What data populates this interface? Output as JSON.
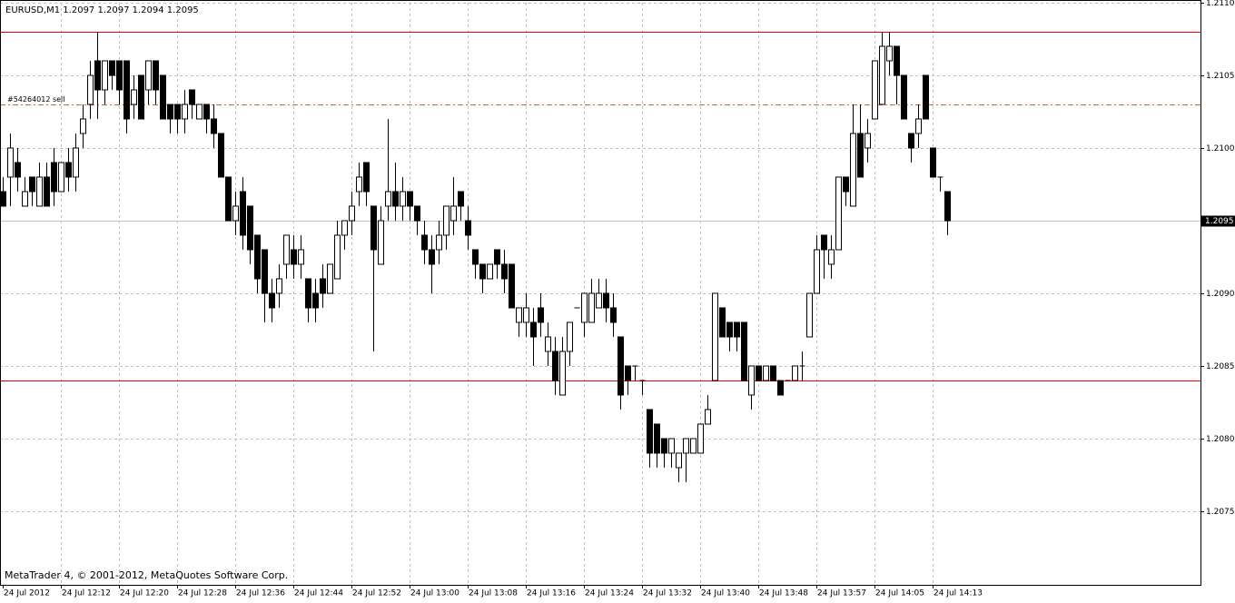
{
  "chart_data": {
    "type": "candlestick",
    "header": "EURUSD,M1  1.2097 1.2097 1.2094 1.2095",
    "footer": "MetaTrader 4, © 2001-2012, MetaQuotes Software Corp.",
    "categories": [
      "24 Jul 2012",
      null,
      null,
      null,
      null,
      null,
      null,
      null,
      "24 Jul 12:12",
      null,
      null,
      null,
      null,
      null,
      null,
      null,
      "24 Jul 12:20",
      null,
      null,
      null,
      null,
      null,
      null,
      null,
      "24 Jul 12:28",
      null,
      null,
      null,
      null,
      null,
      null,
      null,
      "24 Jul 12:36",
      null,
      null,
      null,
      null,
      null,
      null,
      null,
      "24 Jul 12:44",
      null,
      null,
      null,
      null,
      null,
      null,
      null,
      "24 Jul 12:52",
      null,
      null,
      null,
      null,
      null,
      null,
      null,
      "24 Jul 13:00",
      null,
      null,
      null,
      null,
      null,
      null,
      null,
      "24 Jul 13:08",
      null,
      null,
      null,
      null,
      null,
      null,
      null,
      "24 Jul 13:16",
      null,
      null,
      null,
      null,
      null,
      null,
      null,
      "24 Jul 13:24",
      null,
      null,
      null,
      null,
      null,
      null,
      null,
      "24 Jul 13:32",
      null,
      null,
      null,
      null,
      null,
      null,
      null,
      "24 Jul 13:40",
      null,
      null,
      null,
      null,
      null,
      null,
      null,
      "24 Jul 13:48",
      null,
      null,
      null,
      null,
      null,
      null,
      null,
      "24 Jul 13:57",
      null,
      null,
      null,
      null,
      null,
      null,
      null,
      "24 Jul 14:05",
      null,
      null,
      null,
      null,
      null,
      null,
      null,
      "24 Jul 14:13",
      null,
      null
    ],
    "open": [
      1.2097,
      1.2098,
      1.2099,
      1.2096,
      1.2098,
      1.2096,
      1.2098,
      1.2099,
      1.2097,
      1.2099,
      1.2098,
      1.2101,
      1.2103,
      1.2106,
      1.2104,
      1.2106,
      1.2106,
      1.2106,
      1.2103,
      1.2105,
      1.2104,
      1.2106,
      1.2105,
      1.2103,
      1.2103,
      1.2102,
      1.2104,
      1.2102,
      1.2103,
      1.2102,
      1.2101,
      1.2098,
      1.2095,
      1.2097,
      1.2096,
      1.2094,
      1.2093,
      1.209,
      1.209,
      1.2092,
      1.2093,
      1.2092,
      1.2091,
      1.209,
      1.2091,
      1.209,
      1.2091,
      1.2094,
      1.2095,
      1.2097,
      1.2099,
      1.2096,
      1.2092,
      1.2096,
      1.2097,
      1.2096,
      1.2097,
      1.2096,
      1.2094,
      1.2093,
      1.2093,
      1.2094,
      1.2095,
      1.2097,
      1.2095,
      1.2093,
      1.2092,
      1.2091,
      1.2093,
      1.2092,
      1.2092,
      1.2088,
      1.2088,
      1.2088,
      1.2089,
      1.2086,
      1.2086,
      1.2083,
      1.2086,
      1.2089,
      1.2088,
      1.2088,
      1.2089,
      1.209,
      1.2089,
      1.2087,
      1.2085,
      1.2085,
      1.2084,
      1.2082,
      1.2081,
      1.208,
      1.2079,
      1.2078,
      1.2079,
      1.2079,
      1.2079,
      1.2081,
      1.2084,
      1.2089,
      1.2088,
      1.2088,
      1.2088,
      1.2083,
      1.2085,
      1.2084,
      1.2085,
      1.2084,
      1.2084,
      1.2084,
      1.2085,
      1.2087,
      1.209,
      1.2094,
      1.2092,
      1.2093,
      1.2098,
      1.2096,
      1.2101,
      1.21,
      1.2102,
      1.2103,
      1.2106,
      1.2107,
      1.2105,
      1.2101,
      1.2101,
      1.2105,
      1.21,
      1.2098,
      1.2097
    ],
    "high": [
      1.2098,
      1.2101,
      1.21,
      1.2098,
      1.2098,
      1.2099,
      1.2099,
      1.21,
      1.2099,
      1.21,
      1.2101,
      1.2103,
      1.2106,
      1.2108,
      1.2106,
      1.2106,
      1.2106,
      1.2106,
      1.2105,
      1.2105,
      1.2106,
      1.2106,
      1.2105,
      1.2103,
      1.2103,
      1.2104,
      1.2104,
      1.2103,
      1.2103,
      1.2103,
      1.2101,
      1.2098,
      1.2097,
      1.2098,
      1.2096,
      1.2094,
      1.2093,
      1.2091,
      1.2092,
      1.2094,
      1.2094,
      1.2094,
      1.2091,
      1.2091,
      1.2092,
      1.2092,
      1.2095,
      1.2095,
      1.2097,
      1.2099,
      1.2099,
      1.2096,
      1.2096,
      1.2102,
      1.2099,
      1.2098,
      1.2097,
      1.2096,
      1.2095,
      1.2094,
      1.2095,
      1.2096,
      1.2098,
      1.2097,
      1.2096,
      1.2093,
      1.2092,
      1.2092,
      1.2093,
      1.2093,
      1.2092,
      1.2089,
      1.209,
      1.2089,
      1.209,
      1.2088,
      1.2087,
      1.2087,
      1.2088,
      1.2089,
      1.209,
      1.2091,
      1.2091,
      1.2091,
      1.209,
      1.2087,
      1.2085,
      1.2085,
      1.2084,
      1.2082,
      1.2081,
      1.208,
      1.208,
      1.2079,
      1.208,
      1.208,
      1.2081,
      1.2083,
      1.209,
      1.2089,
      1.2088,
      1.2088,
      1.2088,
      1.2085,
      1.2085,
      1.2085,
      1.2085,
      1.2084,
      1.2084,
      1.2085,
      1.2086,
      1.209,
      1.2094,
      1.2094,
      1.2094,
      1.2098,
      1.2098,
      1.2103,
      1.2103,
      1.2102,
      1.2106,
      1.2108,
      1.2108,
      1.2107,
      1.2105,
      1.2101,
      1.2103,
      1.2105,
      1.21,
      1.2098,
      1.2097
    ],
    "low": [
      1.2096,
      1.2096,
      1.2097,
      1.2096,
      1.2096,
      1.2096,
      1.2096,
      1.2096,
      1.2097,
      1.2097,
      1.2097,
      1.21,
      1.2102,
      1.2102,
      1.2103,
      1.2104,
      1.2103,
      1.2101,
      1.2102,
      1.2102,
      1.2103,
      1.2103,
      1.2102,
      1.2101,
      1.2101,
      1.2101,
      1.2102,
      1.2102,
      1.2101,
      1.21,
      1.2098,
      1.2095,
      1.2094,
      1.2093,
      1.2092,
      1.209,
      1.2088,
      1.2088,
      1.2089,
      1.2091,
      1.2091,
      1.2091,
      1.2088,
      1.2088,
      1.2089,
      1.209,
      1.2091,
      1.2093,
      1.2094,
      1.2096,
      1.2096,
      1.2086,
      1.2092,
      1.2095,
      1.2095,
      1.2095,
      1.2095,
      1.2094,
      1.2092,
      1.209,
      1.2092,
      1.2093,
      1.2094,
      1.2095,
      1.2093,
      1.2091,
      1.209,
      1.2091,
      1.2091,
      1.209,
      1.2089,
      1.2087,
      1.2087,
      1.2085,
      1.2087,
      1.2085,
      1.2083,
      1.2083,
      1.2085,
      1.2089,
      1.2087,
      1.2088,
      1.2089,
      1.2088,
      1.2087,
      1.2082,
      1.2083,
      1.2084,
      1.2083,
      1.2078,
      1.2078,
      1.2078,
      1.2078,
      1.2077,
      1.2077,
      1.2079,
      1.2079,
      1.2081,
      1.2084,
      1.2087,
      1.2086,
      1.2086,
      1.2084,
      1.2082,
      1.2084,
      1.2084,
      1.2084,
      1.2083,
      1.2084,
      1.2084,
      1.2084,
      1.2087,
      1.209,
      1.2091,
      1.2091,
      1.2093,
      1.2096,
      1.2096,
      1.2098,
      1.2099,
      1.2102,
      1.2103,
      1.2105,
      1.2103,
      1.2102,
      1.2099,
      1.21,
      1.2102,
      1.2098,
      1.2097,
      1.2094
    ],
    "close": [
      1.2096,
      1.21,
      1.2098,
      1.2097,
      1.2097,
      1.2098,
      1.2096,
      1.2097,
      1.2099,
      1.2098,
      1.21,
      1.2102,
      1.2105,
      1.2104,
      1.2106,
      1.2105,
      1.2104,
      1.2102,
      1.2104,
      1.2102,
      1.2106,
      1.2104,
      1.2102,
      1.2102,
      1.2102,
      1.2103,
      1.2103,
      1.2103,
      1.2102,
      1.2101,
      1.2098,
      1.2095,
      1.2096,
      1.2094,
      1.2093,
      1.2091,
      1.209,
      1.2089,
      1.2091,
      1.2094,
      1.2092,
      1.2093,
      1.2089,
      1.2089,
      1.209,
      1.2092,
      1.2094,
      1.2095,
      1.2096,
      1.2098,
      1.2097,
      1.2093,
      1.2095,
      1.2097,
      1.2096,
      1.2097,
      1.2096,
      1.2095,
      1.2093,
      1.2092,
      1.2094,
      1.2096,
      1.2096,
      1.2096,
      1.2094,
      1.2092,
      1.2091,
      1.2092,
      1.2092,
      1.2091,
      1.2089,
      1.2089,
      1.2089,
      1.2087,
      1.2088,
      1.2087,
      1.2084,
      1.2086,
      1.2088,
      1.2089,
      1.209,
      1.209,
      1.209,
      1.2089,
      1.2088,
      1.2083,
      1.2084,
      1.2085,
      1.2084,
      1.2079,
      1.2079,
      1.2079,
      1.208,
      1.2079,
      1.208,
      1.208,
      1.2081,
      1.2082,
      1.209,
      1.2087,
      1.2087,
      1.2087,
      1.2084,
      1.2085,
      1.2084,
      1.2085,
      1.2084,
      1.2083,
      1.2084,
      1.2085,
      1.2085,
      1.209,
      1.2093,
      1.2093,
      1.2093,
      1.2098,
      1.2097,
      1.2101,
      1.2098,
      1.2101,
      1.2106,
      1.2107,
      1.2107,
      1.2105,
      1.2102,
      1.21,
      1.2102,
      1.2102,
      1.2098,
      1.2098,
      1.2095
    ],
    "up_color": "#ffffff",
    "down_color": "#000000",
    "ylim": [
      1.207,
      1.211
    ],
    "yticks": [
      1.2075,
      {
        "value": 1.208,
        "label": "1.2080"
      },
      1.2085,
      {
        "value": 1.209,
        "label": "1.2090"
      },
      1.2095,
      {
        "value": 1.21,
        "label": "1.2100"
      },
      1.2105,
      {
        "value": 1.211,
        "label": "1.2110"
      }
    ],
    "grid": true,
    "hlines": [
      {
        "value": 1.2108,
        "color": "#e00000"
      },
      {
        "value": 1.2084,
        "color": "#e00000"
      },
      {
        "value": 1.2103,
        "color": "#d2691e",
        "dash": true,
        "label": "#54264012 sell"
      }
    ],
    "bid": 1.2095
  }
}
